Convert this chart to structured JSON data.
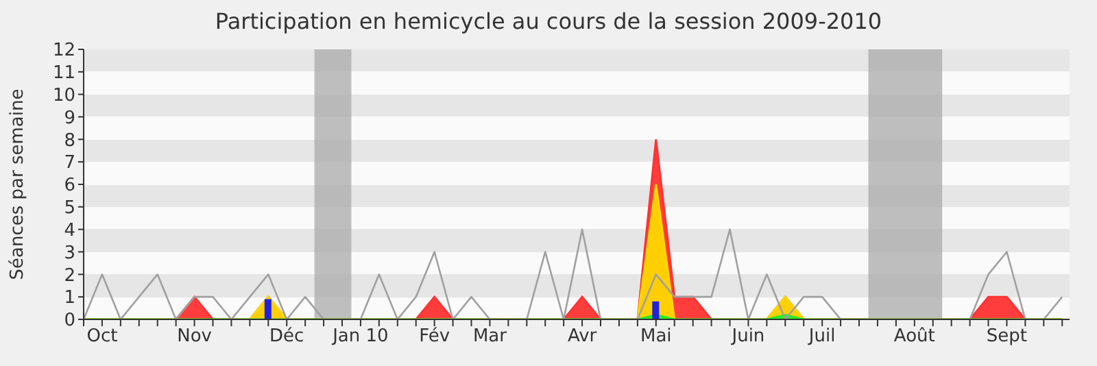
{
  "chart_data": {
    "type": "area",
    "title": "Participation en hemicycle au cours de la session 2009-2010",
    "ylabel": "Séances par semaine",
    "categories": [
      null,
      "Oct",
      null,
      null,
      null,
      null,
      "Nov",
      null,
      null,
      null,
      null,
      "Déc",
      null,
      null,
      null,
      "Jan 10",
      null,
      null,
      null,
      "Fév",
      null,
      null,
      "Mar",
      null,
      null,
      null,
      null,
      "Avr",
      null,
      null,
      null,
      "Mai",
      null,
      null,
      null,
      null,
      "Juin",
      null,
      null,
      null,
      "Juil",
      null,
      null,
      null,
      null,
      "Août",
      null,
      null,
      null,
      null,
      "Sept",
      null,
      null,
      null
    ],
    "ylim": [
      0,
      12
    ],
    "yticks": [
      0,
      1,
      2,
      3,
      4,
      5,
      6,
      7,
      8,
      9,
      10,
      11,
      12
    ],
    "series": [
      {
        "color": "#ff3333",
        "values": [
          0,
          0,
          0,
          0,
          0,
          0,
          1,
          0,
          0,
          0,
          1,
          0,
          0,
          0,
          0,
          0,
          0,
          0,
          0,
          1,
          0,
          0,
          0,
          0,
          0,
          0,
          0,
          1,
          0,
          0,
          0,
          8,
          1,
          1,
          0,
          0,
          0,
          0,
          1,
          0,
          0,
          0,
          0,
          0,
          0,
          0,
          0,
          0,
          0,
          1,
          1,
          0,
          0,
          0
        ]
      },
      {
        "color": "#ffd700",
        "values": [
          0,
          0,
          0,
          0,
          0,
          0,
          0,
          0,
          0,
          0,
          1,
          0,
          0,
          0,
          0,
          0,
          0,
          0,
          0,
          0,
          0,
          0,
          0,
          0,
          0,
          0,
          0,
          0,
          0,
          0,
          0,
          6,
          0,
          0,
          0,
          0,
          0,
          0,
          1,
          0,
          0,
          0,
          0,
          0,
          0,
          0,
          0,
          0,
          0,
          0,
          0,
          0,
          0,
          0
        ]
      },
      {
        "color": "#22ee22",
        "values": [
          0,
          0,
          0,
          0,
          0,
          0,
          0,
          0,
          0,
          0,
          0,
          0,
          0,
          0,
          0,
          0,
          0,
          0,
          0,
          0,
          0,
          0,
          0,
          0,
          0,
          0,
          0,
          0,
          0,
          0,
          0,
          0.2,
          0,
          0,
          0,
          0,
          0,
          0,
          0.2,
          0,
          0,
          0,
          0,
          0,
          0,
          0,
          0,
          0,
          0,
          0,
          0,
          0,
          0,
          0
        ]
      },
      {
        "type": "line",
        "color": "#a0a0a0",
        "values": [
          0,
          2,
          0,
          1,
          2,
          0,
          1,
          1,
          0,
          1,
          2,
          0,
          1,
          0,
          0,
          0,
          2,
          0,
          1,
          3,
          0,
          1,
          0,
          0,
          0,
          3,
          0,
          4,
          0,
          0,
          0,
          2,
          1,
          1,
          1,
          4,
          0,
          2,
          0,
          1,
          1,
          0,
          0,
          0,
          0,
          0,
          0,
          0,
          0,
          2,
          3,
          0,
          0,
          1
        ]
      },
      {
        "type": "bar",
        "color": "#2222dd",
        "values": [
          null,
          null,
          null,
          null,
          null,
          null,
          null,
          null,
          null,
          null,
          0.9,
          null,
          null,
          null,
          null,
          null,
          null,
          null,
          null,
          null,
          null,
          null,
          null,
          null,
          null,
          null,
          null,
          null,
          null,
          null,
          null,
          0.8,
          null,
          null,
          null,
          null,
          null,
          null,
          null,
          null,
          null,
          null,
          null,
          null,
          null,
          null,
          null,
          null,
          null,
          null,
          null,
          null,
          null,
          null
        ]
      }
    ]
  }
}
